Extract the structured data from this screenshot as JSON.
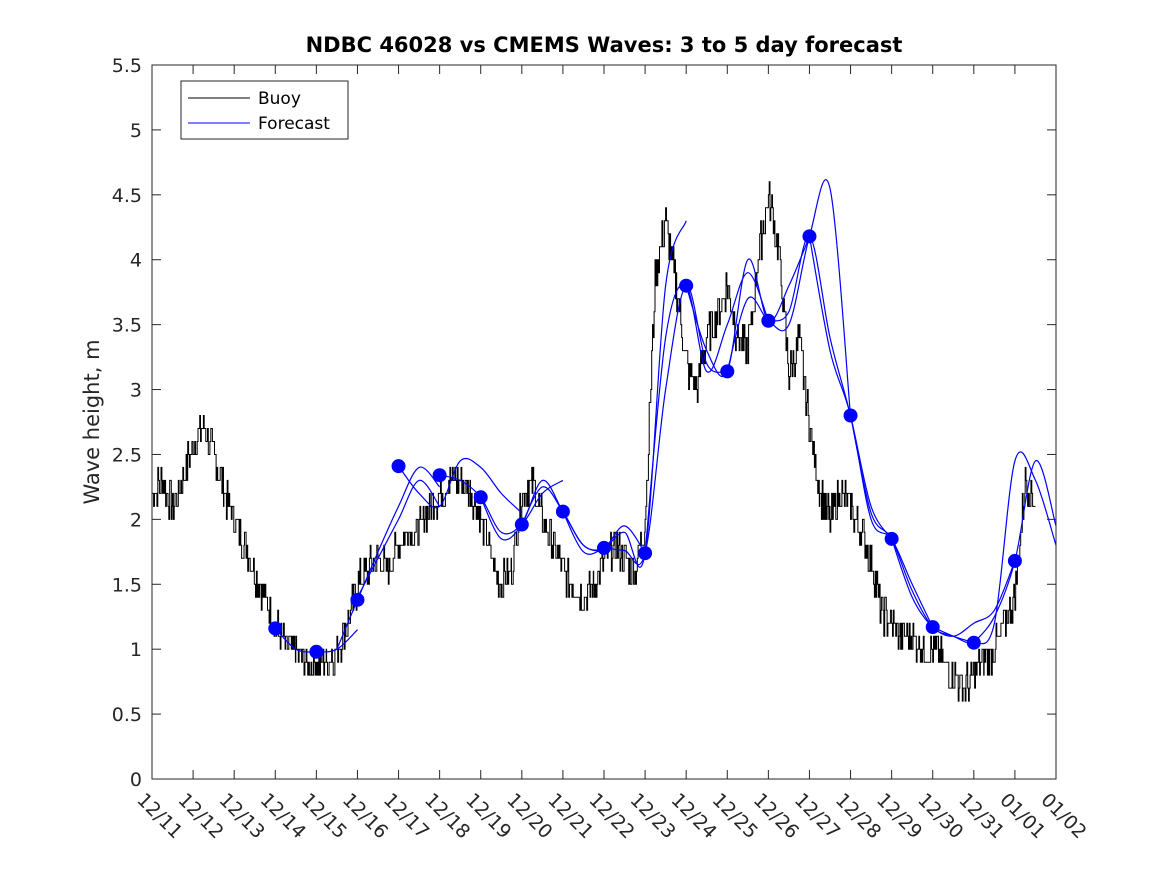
{
  "chart_data": {
    "type": "line",
    "title": "NDBC 46028 vs CMEMS Waves: 3 to 5 day forecast",
    "xlabel": "",
    "ylabel": "Wave height, m",
    "xlim": [
      0,
      22
    ],
    "ylim": [
      0,
      5.5
    ],
    "yticks": [
      0,
      0.5,
      1,
      1.5,
      2,
      2.5,
      3,
      3.5,
      4,
      4.5,
      5,
      5.5
    ],
    "ytick_labels": [
      "0",
      "0.5",
      "1",
      "1.5",
      "2",
      "2.5",
      "3",
      "3.5",
      "4",
      "4.5",
      "5",
      "5.5"
    ],
    "xtick_labels": [
      "12/11",
      "12/12",
      "12/13",
      "12/14",
      "12/15",
      "12/16",
      "12/17",
      "12/18",
      "12/19",
      "12/20",
      "12/21",
      "12/22",
      "12/23",
      "12/24",
      "12/25",
      "12/26",
      "12/27",
      "12/28",
      "12/29",
      "12/30",
      "12/31",
      "01/01",
      "01/02"
    ],
    "grid": false,
    "legend": {
      "position": "top-left",
      "entries": [
        "Buoy",
        "Forecast"
      ]
    },
    "colors": {
      "buoy": "#000000",
      "forecast": "#0000ff",
      "axis": "#262626"
    },
    "series": [
      {
        "name": "Buoy",
        "color": "#000000",
        "x": [
          0,
          0.25,
          0.5,
          0.75,
          1.0,
          1.25,
          1.5,
          1.75,
          2.0,
          2.25,
          2.5,
          2.75,
          3.0,
          3.25,
          3.5,
          3.75,
          4.0,
          4.25,
          4.5,
          4.75,
          5.0,
          5.25,
          5.5,
          5.75,
          6.0,
          6.25,
          6.5,
          6.75,
          7.0,
          7.25,
          7.5,
          7.75,
          8.0,
          8.25,
          8.5,
          8.75,
          9.0,
          9.25,
          9.5,
          9.75,
          10.0,
          10.25,
          10.5,
          10.75,
          11.0,
          11.25,
          11.5,
          11.75,
          12.0,
          12.25,
          12.5,
          12.75,
          13.0,
          13.25,
          13.5,
          13.75,
          14.0,
          14.25,
          14.5,
          14.75,
          15.0,
          15.25,
          15.5,
          15.75,
          16.0,
          16.25,
          16.5,
          16.75,
          17.0,
          17.25,
          17.5,
          17.75,
          18.0,
          18.25,
          18.5,
          18.75,
          19.0,
          19.25,
          19.5,
          19.75,
          20.0,
          20.25,
          20.5,
          20.75,
          21.0,
          21.25,
          21.5
        ],
        "y": [
          2.2,
          2.3,
          2.1,
          2.3,
          2.6,
          2.7,
          2.5,
          2.2,
          2.0,
          1.8,
          1.6,
          1.4,
          1.2,
          1.0,
          1.0,
          0.9,
          0.9,
          0.9,
          1.0,
          1.2,
          1.5,
          1.6,
          1.7,
          1.6,
          1.8,
          1.9,
          1.9,
          2.1,
          2.2,
          2.3,
          2.3,
          2.2,
          2.0,
          1.7,
          1.5,
          1.6,
          2.2,
          2.3,
          2.0,
          1.8,
          1.6,
          1.5,
          1.4,
          1.5,
          1.7,
          1.8,
          1.7,
          1.6,
          2.0,
          3.9,
          4.3,
          3.8,
          3.2,
          3.0,
          3.4,
          3.6,
          3.8,
          3.4,
          3.3,
          4.0,
          4.5,
          4.1,
          3.1,
          3.4,
          2.7,
          2.2,
          2.0,
          2.2,
          2.1,
          1.9,
          1.7,
          1.3,
          1.2,
          1.1,
          1.1,
          1.0,
          1.0,
          0.9,
          0.8,
          0.7,
          0.8,
          0.9,
          1.0,
          1.2,
          1.4,
          2.3,
          2.1
        ]
      },
      {
        "name": "Forecast",
        "color": "#0000ff",
        "segments": [
          {
            "x": [
              3.0,
              3.5,
              4.0,
              4.5,
              5.0
            ],
            "y": [
              1.16,
              1.0,
              0.98,
              1.0,
              1.15
            ]
          },
          {
            "x": [
              4.5,
              5.0,
              5.5,
              6.0,
              6.5,
              7.0
            ],
            "y": [
              1.0,
              1.38,
              1.75,
              2.1,
              2.4,
              2.25
            ]
          },
          {
            "x": [
              5.0,
              5.5,
              6.0,
              6.5,
              7.0
            ],
            "y": [
              1.4,
              1.7,
              2.0,
              2.3,
              2.1
            ]
          },
          {
            "x": [
              6.0,
              6.5,
              7.0,
              7.5,
              8.0,
              8.5,
              9.0
            ],
            "y": [
              2.41,
              2.2,
              2.1,
              2.45,
              2.4,
              2.2,
              2.05
            ]
          },
          {
            "x": [
              7.0,
              7.5,
              8.0,
              8.5,
              9.0,
              9.5,
              10.0
            ],
            "y": [
              2.34,
              2.3,
              2.17,
              1.9,
              1.96,
              2.2,
              2.3
            ]
          },
          {
            "x": [
              8.0,
              8.5,
              9.0,
              9.5,
              10.0,
              10.5,
              11.0
            ],
            "y": [
              2.17,
              1.85,
              1.96,
              2.3,
              2.06,
              1.8,
              1.75
            ]
          },
          {
            "x": [
              9.0,
              9.5,
              10.0,
              10.5,
              11.0,
              11.5,
              12.0
            ],
            "y": [
              1.96,
              2.25,
              2.06,
              1.8,
              1.78,
              1.95,
              1.74
            ]
          },
          {
            "x": [
              10.0,
              10.5,
              11.0,
              11.5,
              12.0,
              12.5,
              13.0
            ],
            "y": [
              2.06,
              1.75,
              1.78,
              1.9,
              1.74,
              3.8,
              4.3
            ]
          },
          {
            "x": [
              11.0,
              11.5,
              12.0,
              12.5,
              13.0,
              13.5,
              14.0
            ],
            "y": [
              1.78,
              1.76,
              1.74,
              3.0,
              3.8,
              3.2,
              3.14
            ]
          },
          {
            "x": [
              12.0,
              12.5,
              13.0,
              13.5,
              14.0,
              14.5,
              15.0
            ],
            "y": [
              1.74,
              3.4,
              3.8,
              3.14,
              3.5,
              3.9,
              3.53
            ]
          },
          {
            "x": [
              13.0,
              13.5,
              14.0,
              14.5,
              15.0,
              15.5,
              16.0
            ],
            "y": [
              3.8,
              3.3,
              3.14,
              4.0,
              3.53,
              3.8,
              4.18
            ]
          },
          {
            "x": [
              14.0,
              14.5,
              15.0,
              15.5,
              16.0,
              16.5,
              17.0
            ],
            "y": [
              3.14,
              3.7,
              3.53,
              3.5,
              4.18,
              4.55,
              2.8
            ]
          },
          {
            "x": [
              15.0,
              15.5,
              16.0,
              16.5,
              17.0,
              17.5,
              18.0
            ],
            "y": [
              3.53,
              3.6,
              4.18,
              3.4,
              2.8,
              2.1,
              1.85
            ]
          },
          {
            "x": [
              16.0,
              16.5,
              17.0,
              17.5,
              18.0,
              18.5,
              19.0
            ],
            "y": [
              4.18,
              3.3,
              2.8,
              2.0,
              1.85,
              1.5,
              1.17
            ]
          },
          {
            "x": [
              17.0,
              17.5,
              18.0,
              18.5,
              19.0,
              19.5,
              20.0
            ],
            "y": [
              2.8,
              2.05,
              1.85,
              1.45,
              1.17,
              1.1,
              1.05
            ]
          },
          {
            "x": [
              18.0,
              18.5,
              19.0,
              19.5,
              20.0,
              20.5,
              21.0
            ],
            "y": [
              1.85,
              1.4,
              1.17,
              1.1,
              1.2,
              1.3,
              1.68
            ]
          },
          {
            "x": [
              19.0,
              19.5,
              20.0,
              20.5,
              21.0,
              21.5,
              22.0
            ],
            "y": [
              1.17,
              1.1,
              1.05,
              1.2,
              2.45,
              2.3,
              1.8
            ]
          },
          {
            "x": [
              20.0,
              20.5,
              21.0,
              21.5,
              22.0
            ],
            "y": [
              1.05,
              1.25,
              1.68,
              2.45,
              1.95
            ]
          }
        ],
        "markers": {
          "x": [
            3,
            4,
            5,
            6,
            7,
            8,
            9,
            10,
            11,
            12,
            13,
            14,
            15,
            16,
            17,
            18,
            19,
            20,
            21
          ],
          "y": [
            1.16,
            0.98,
            1.38,
            2.41,
            2.34,
            2.17,
            1.96,
            2.06,
            1.78,
            1.74,
            3.8,
            3.14,
            3.53,
            4.18,
            2.8,
            1.85,
            1.17,
            1.05,
            1.68
          ]
        }
      }
    ]
  }
}
